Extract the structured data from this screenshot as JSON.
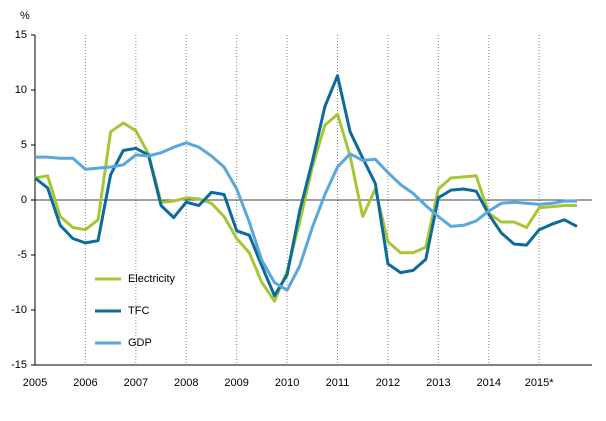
{
  "chart_data": {
    "type": "line",
    "y_label": "%",
    "categories": [
      "2005",
      null,
      null,
      null,
      "2006",
      null,
      null,
      null,
      "2007",
      null,
      null,
      null,
      "2008",
      null,
      null,
      null,
      "2009",
      null,
      null,
      null,
      "2010",
      null,
      null,
      null,
      "2011",
      null,
      null,
      null,
      "2012",
      null,
      null,
      null,
      "2013",
      null,
      null,
      null,
      "2014",
      null,
      null,
      null,
      "2015*",
      null,
      null,
      null
    ],
    "series": [
      {
        "name": "Electricity",
        "color": "#a6c634",
        "values": [
          2,
          2.2,
          -1.5,
          -2.5,
          -2.7,
          -1.8,
          6.2,
          7.0,
          6.3,
          4.2,
          -0.2,
          -0.1,
          0.2,
          0.1,
          -0.3,
          -1.5,
          -3.5,
          -4.8,
          -7.5,
          -9.2,
          -6.5,
          -2,
          3,
          6.8,
          7.8,
          4,
          -1.5,
          1,
          -3.8,
          -4.8,
          -4.8,
          -4.3,
          1,
          2,
          2.1,
          2.2,
          -1.2,
          -2,
          -2,
          -2.5,
          -0.7,
          -0.6,
          -0.5,
          -0.5
        ]
      },
      {
        "name": "TFC",
        "color": "#0d6b9c",
        "values": [
          2,
          1.1,
          -2.3,
          -3.5,
          -3.9,
          -3.7,
          2.3,
          4.5,
          4.7,
          4.1,
          -0.5,
          -1.6,
          -0.2,
          -0.5,
          0.7,
          0.5,
          -2.8,
          -3.2,
          -6,
          -8.7,
          -6.8,
          -1,
          3.5,
          8.5,
          11.3,
          6.2,
          3.8,
          1.5,
          -5.8,
          -6.6,
          -6.4,
          -5.4,
          0.2,
          0.9,
          1,
          0.8,
          -1.3,
          -3,
          -4,
          -4.1,
          -2.7,
          -2.2,
          -1.8,
          -2.4
        ]
      },
      {
        "name": "GDP",
        "color": "#5aa7dd",
        "values": [
          3.9,
          3.9,
          3.8,
          3.8,
          2.8,
          2.9,
          3,
          3.2,
          4.1,
          4,
          4.3,
          4.8,
          5.2,
          4.8,
          4,
          3,
          1,
          -2,
          -5.5,
          -7.5,
          -8.2,
          -6,
          -2.5,
          0.5,
          3,
          4.2,
          3.6,
          3.7,
          2.5,
          1.4,
          0.6,
          -0.5,
          -1.5,
          -2.4,
          -2.3,
          -1.9,
          -1,
          -0.3,
          -0.2,
          -0.3,
          -0.4,
          -0.3,
          -0.1,
          -0.1
        ]
      }
    ],
    "ylim": [
      -15,
      15
    ],
    "yticks": [
      -15,
      -10,
      -5,
      0,
      5,
      10,
      15
    ]
  }
}
